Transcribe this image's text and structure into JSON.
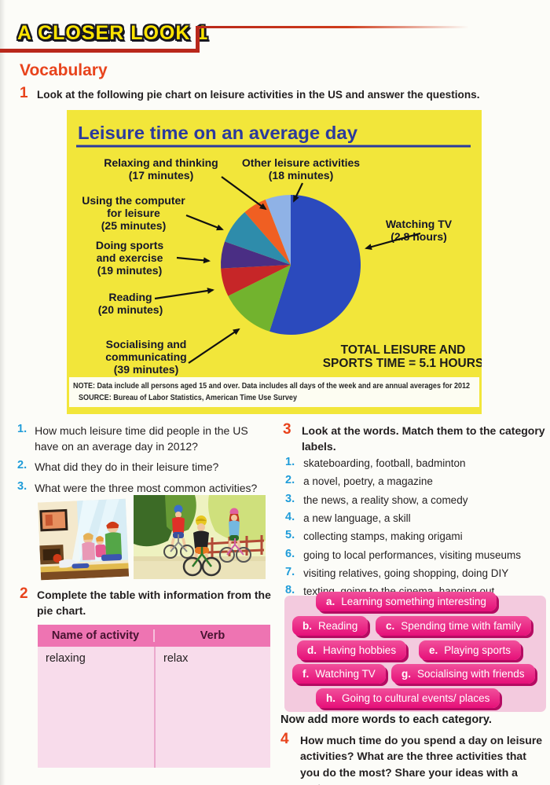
{
  "banner": {
    "title": "A CLOSER LOOK 1",
    "accent_color": "#b9281b",
    "title_color": "#ffe400"
  },
  "section_heading": "Vocabulary",
  "exercise1": {
    "num": "1",
    "text": "Look at the following pie chart on leisure activities in the US and answer the questions."
  },
  "chart_data": {
    "type": "pie",
    "title": "Leisure time on an average day",
    "background_color": "#f2e63a",
    "start_angle": "top, clockwise",
    "slices": [
      {
        "label": "Watching TV",
        "display": "2.8 hours",
        "minutes": 168,
        "color": "#2b4abd"
      },
      {
        "label": "Socialising and communicating",
        "display": "39 minutes",
        "minutes": 39,
        "color": "#72b32e"
      },
      {
        "label": "Reading",
        "display": "20 minutes",
        "minutes": 20,
        "color": "#c62628"
      },
      {
        "label": "Doing sports and exercise",
        "display": "19 minutes",
        "minutes": 19,
        "color": "#4a2e84"
      },
      {
        "label": "Using the computer for leisure",
        "display": "25 minutes",
        "minutes": 25,
        "color": "#2e8cab"
      },
      {
        "label": "Relaxing and thinking",
        "display": "17 minutes",
        "minutes": 17,
        "color": "#f05f22"
      },
      {
        "label": "Other leisure activities",
        "display": "18 minutes",
        "minutes": 18,
        "color": "#8fb2e6"
      }
    ],
    "callouts": [
      {
        "lines": [
          "Relaxing and thinking",
          "(17 minutes)"
        ]
      },
      {
        "lines": [
          "Other leisure activities",
          "(18 minutes)"
        ]
      },
      {
        "lines": [
          "Using the computer",
          "for leisure",
          "(25 minutes)"
        ]
      },
      {
        "lines": [
          "Doing sports",
          "and exercise",
          "(19 minutes)"
        ]
      },
      {
        "lines": [
          "Reading",
          "(20 minutes)"
        ]
      },
      {
        "lines": [
          "Socialising and",
          "communicating",
          "(39 minutes)"
        ]
      },
      {
        "lines": [
          "Watching TV",
          "(2.8 hours)"
        ]
      }
    ],
    "total_lines": [
      "TOTAL LEISURE AND",
      "SPORTS TIME = 5.1 HOURS"
    ],
    "note": "NOTE: Data include all persons aged 15 and over. Data includes all days of the week and are annual averages for 2012",
    "source": "SOURCE: Bureau of Labor Statistics, American Time Use Survey"
  },
  "questions": [
    {
      "num": "1.",
      "text": "How much leisure time did people in the US have on an average day in 2012?"
    },
    {
      "num": "2.",
      "text": "What did they do in their leisure time?"
    },
    {
      "num": "3.",
      "text": "What were the three most common activities?"
    }
  ],
  "exercise2": {
    "num": "2",
    "text": "Complete the table with information from the pie chart.",
    "table": {
      "headers": [
        "Name of activity",
        "Verb"
      ],
      "rows": [
        [
          "relaxing",
          "relax"
        ]
      ]
    }
  },
  "exercise3": {
    "num": "3",
    "text": "Look at the words. Match them to the category labels.",
    "items": [
      {
        "num": "1.",
        "text": "skateboarding, football, badminton"
      },
      {
        "num": "2.",
        "text": "a novel, poetry, a magazine"
      },
      {
        "num": "3.",
        "text": "the news, a reality show, a comedy"
      },
      {
        "num": "4.",
        "text": "a new language, a skill"
      },
      {
        "num": "5.",
        "text": "collecting stamps, making origami"
      },
      {
        "num": "6.",
        "text": "going to local performances, visiting museums"
      },
      {
        "num": "7.",
        "text": "visiting relatives, going shopping, doing DIY"
      },
      {
        "num": "8.",
        "text": "texting, going to the cinema, hanging out"
      }
    ]
  },
  "categories": [
    {
      "letter": "a.",
      "label": "Learning something interesting"
    },
    {
      "letter": "b.",
      "label": "Reading"
    },
    {
      "letter": "c.",
      "label": "Spending time with family"
    },
    {
      "letter": "d.",
      "label": "Having hobbies"
    },
    {
      "letter": "e.",
      "label": "Playing sports"
    },
    {
      "letter": "f.",
      "label": "Watching TV"
    },
    {
      "letter": "g.",
      "label": "Socialising with friends"
    },
    {
      "letter": "h.",
      "label": "Going to cultural events/ places"
    }
  ],
  "after_categories": "Now add more words to each category.",
  "exercise4": {
    "num": "4",
    "text": "How much time do you spend a day on leisure activities? What are the three activities that you do the most? Share your ideas with a partner."
  }
}
